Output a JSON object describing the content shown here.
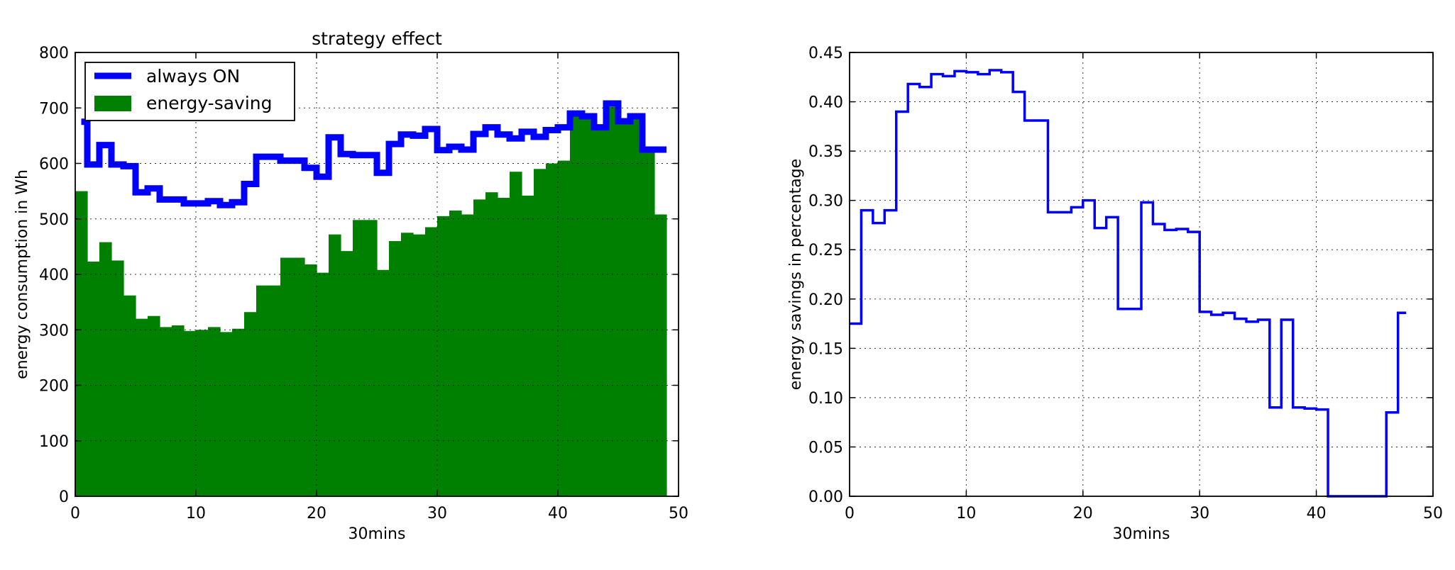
{
  "chart_data": [
    {
      "type": "bar",
      "title": "strategy effect",
      "xlabel": "30mins",
      "ylabel": "energy consumption in Wh",
      "xlim": [
        0,
        50
      ],
      "ylim": [
        0,
        800
      ],
      "xticks": [
        "0",
        "10",
        "20",
        "30",
        "40",
        "50"
      ],
      "yticks": [
        "0",
        "100",
        "200",
        "300",
        "400",
        "500",
        "600",
        "700",
        "800"
      ],
      "grid": true,
      "legend_position": "top-left",
      "series": [
        {
          "name": "always ON",
          "style": "step",
          "color": "#0000ff",
          "values": [
            675,
            598,
            633,
            598,
            595,
            548,
            555,
            535,
            535,
            528,
            528,
            532,
            525,
            530,
            563,
            612,
            612,
            605,
            605,
            592,
            576,
            647,
            617,
            615,
            615,
            583,
            635,
            652,
            650,
            662,
            624,
            630,
            625,
            653,
            665,
            652,
            645,
            657,
            648,
            660,
            665,
            690,
            685,
            665,
            708,
            676,
            685,
            625,
            625
          ]
        },
        {
          "name": "energy-saving",
          "style": "bar",
          "color": "#008000",
          "values": [
            550,
            423,
            458,
            425,
            362,
            320,
            325,
            305,
            308,
            298,
            300,
            305,
            296,
            302,
            332,
            380,
            380,
            430,
            430,
            418,
            403,
            472,
            442,
            498,
            498,
            408,
            460,
            475,
            472,
            485,
            505,
            515,
            508,
            535,
            548,
            538,
            585,
            542,
            590,
            600,
            605,
            690,
            680,
            665,
            702,
            675,
            685,
            625,
            508
          ]
        }
      ]
    },
    {
      "type": "line",
      "title": "",
      "xlabel": "30mins",
      "ylabel": "energy savings in percentage",
      "xlim": [
        0,
        50
      ],
      "ylim": [
        0,
        0.45
      ],
      "xticks": [
        "0",
        "10",
        "20",
        "30",
        "40",
        "50"
      ],
      "yticks": [
        "0.00",
        "0.05",
        "0.10",
        "0.15",
        "0.20",
        "0.25",
        "0.30",
        "0.35",
        "0.40",
        "0.45"
      ],
      "grid": true,
      "series": [
        {
          "style": "step",
          "color": "#0000ff",
          "x": [
            0,
            1,
            2,
            3,
            4,
            5,
            6,
            7,
            8,
            9,
            10,
            11,
            12,
            13,
            14,
            15,
            16,
            17,
            18,
            19,
            20,
            21,
            22,
            23,
            24,
            25,
            26,
            27,
            28,
            29,
            30,
            31,
            32,
            33,
            34,
            35,
            36,
            37,
            38,
            39,
            40,
            41,
            42,
            43,
            44,
            45,
            46,
            47
          ],
          "values": [
            0.175,
            0.29,
            0.277,
            0.29,
            0.39,
            0.418,
            0.415,
            0.428,
            0.426,
            0.431,
            0.43,
            0.428,
            0.432,
            0.43,
            0.41,
            0.381,
            0.381,
            0.288,
            0.288,
            0.293,
            0.3,
            0.272,
            0.283,
            0.19,
            0.19,
            0.298,
            0.276,
            0.27,
            0.271,
            0.268,
            0.187,
            0.184,
            0.186,
            0.18,
            0.177,
            0.179,
            0.09,
            0.179,
            0.09,
            0.089,
            0.088,
            0.0,
            0.0,
            0.0,
            0.0,
            0.0,
            0.085,
            0.186
          ]
        }
      ]
    }
  ]
}
